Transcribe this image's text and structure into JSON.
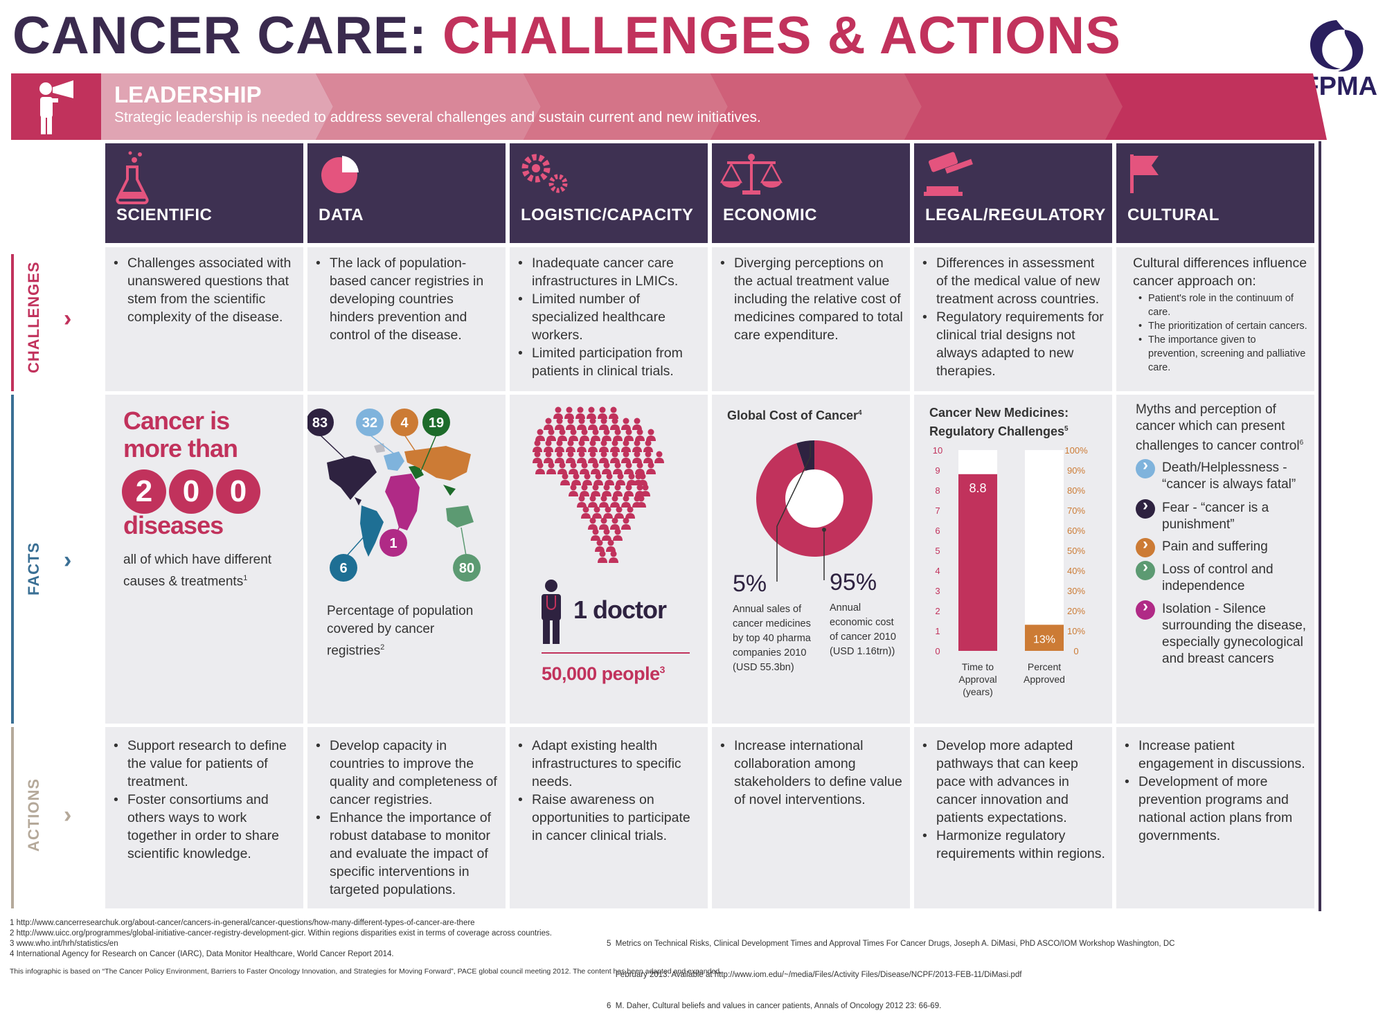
{
  "title": {
    "part1": "CANCER CARE:",
    "part2": "CHALLENGES & ACTIONS"
  },
  "logo": {
    "text": "IFPMA",
    "icon": "ifpma-swirl-logo"
  },
  "leadership": {
    "title": "LEADERSHIP",
    "subtitle": "Strategic leadership is needed to address several challenges and sustain current and new initiatives.",
    "icon": "megaphone-person-icon"
  },
  "rows": {
    "challenges": "CHALLENGES",
    "facts": "FACTS",
    "actions": "ACTIONS"
  },
  "columns": [
    {
      "label": "SCIENTIFIC",
      "icon": "flask-icon"
    },
    {
      "label": "DATA",
      "icon": "pie-icon"
    },
    {
      "label": "LOGISTIC/CAPACITY",
      "icon": "gears-icon"
    },
    {
      "label": "ECONOMIC",
      "icon": "scales-icon"
    },
    {
      "label": "LEGAL/REGULATORY",
      "icon": "gavel-icon"
    },
    {
      "label": "CULTURAL",
      "icon": "flag-icon"
    }
  ],
  "challenges": {
    "scientific": [
      "Challenges associated with unanswered questions that stem from the scientific complexity of the disease."
    ],
    "data": [
      "The lack of population-based cancer registries in developing countries hinders prevention and control of the disease."
    ],
    "logistic": [
      "Inadequate cancer care infrastructures in LMICs.",
      "Limited number of specialized healthcare workers.",
      "Limited participation from patients in clinical trials."
    ],
    "economic": [
      "Diverging perceptions on the actual treatment value including the relative cost of medicines compared to total care expenditure."
    ],
    "legal": [
      "Differences in assessment of the medical value of new treatment across countries.",
      "Regulatory requirements for clinical trial designs not always adapted to new therapies."
    ],
    "cultural_intro": "Cultural differences influence cancer approach on:",
    "cultural": [
      "Patient's role in the continuum of care.",
      "The prioritization of certain cancers.",
      "The importance given to prevention, screening and palliative care."
    ]
  },
  "facts": {
    "scientific": {
      "line1": "Cancer is",
      "line2": "more than",
      "digits": [
        "2",
        "0",
        "0"
      ],
      "line3": "diseases",
      "caption": "all of which have different causes & treatments",
      "sup": "1"
    },
    "data": {
      "bubbles": [
        {
          "label": "83",
          "color": "#2e2240"
        },
        {
          "label": "32",
          "color": "#7fb3dc"
        },
        {
          "label": "4",
          "color": "#cc7b35"
        },
        {
          "label": "19",
          "color": "#1d6b2a"
        },
        {
          "label": "6",
          "color": "#1e6f94"
        },
        {
          "label": "1",
          "color": "#b02a86"
        },
        {
          "label": "80",
          "color": "#5c9a72"
        }
      ],
      "caption": "Percentage of population covered by cancer registries",
      "sup": "2"
    },
    "logistic": {
      "doctor": "1 doctor",
      "people": "50,000 people",
      "sup": "3"
    },
    "economic": {
      "title": "Global Cost of Cancer",
      "sup": "4",
      "left_pct": "5%",
      "left_text": "Annual sales of cancer medicines by top 40 pharma companies 2010 (USD 55.3bn)",
      "right_pct": "95%",
      "right_text": "Annual economic cost of cancer 2010 (USD 1.16trn))"
    },
    "legal": {
      "title1": "Cancer New Medicines:",
      "title2": "Regulatory Challenges",
      "sup": "5"
    },
    "cultural": {
      "intro": "Myths and perception of cancer which can present challenges to cancer control",
      "sup": "6",
      "myths": [
        {
          "text": "Death/Helplessness - “cancer is always fatal”",
          "color": "#7fb3dc"
        },
        {
          "text": "Fear - “cancer is a punishment”",
          "color": "#2e2240"
        },
        {
          "text": "Pain and suffering",
          "color": "#cc7b35"
        },
        {
          "text": "Loss of control and independence",
          "color": "#5c9a72"
        },
        {
          "text": "Isolation - Silence surrounding the disease, especially gynecological and breast cancers",
          "color": "#b02a86"
        }
      ]
    }
  },
  "chart_data": [
    {
      "type": "pie",
      "title": "Global Cost of Cancer",
      "labels": [
        "Annual sales of cancer medicines by top 40 pharma companies 2010 (USD 55.3bn)",
        "Annual economic cost of cancer 2010 (USD 1.16trn))"
      ],
      "values": [
        5,
        95
      ],
      "colors": [
        "#2e2240",
        "#c1325c"
      ]
    },
    {
      "type": "bar",
      "title": "Cancer New Medicines: Regulatory Challenges",
      "categories": [
        "Time to Approval (years)",
        "Percent Approved"
      ],
      "values": [
        8.8,
        13
      ],
      "value_labels": [
        "8.8",
        "13%"
      ],
      "left_axis": {
        "ticks": [
          "0",
          "1",
          "2",
          "3",
          "4",
          "5",
          "6",
          "7",
          "8",
          "9",
          "10"
        ],
        "ylim": [
          0,
          10
        ]
      },
      "right_axis": {
        "ticks": [
          "0",
          "10%",
          "20%",
          "30%",
          "40%",
          "50%",
          "60%",
          "70%",
          "80%",
          "90%",
          "100%"
        ],
        "ylim": [
          0,
          100
        ]
      },
      "colors": [
        "#c1325c",
        "#cc7b35"
      ]
    }
  ],
  "actions": {
    "scientific": [
      "Support research to define the value for patients of treatment.",
      "Foster consortiums and others ways to work together in order to share scientific knowledge."
    ],
    "data": [
      "Develop capacity in countries to improve the quality and completeness of cancer registries.",
      "Enhance the importance of robust database to monitor and evaluate the impact of specific interventions in targeted populations."
    ],
    "logistic": [
      "Adapt existing health infrastructures to specific needs.",
      "Raise awareness on opportunities to participate in cancer clinical trials."
    ],
    "economic": [
      "Increase international collaboration among stakeholders to define value of novel interventions."
    ],
    "legal": [
      "Develop more adapted pathways that can keep pace with advances in cancer innovation and patients expectations.",
      "Harmonize regulatory requirements within regions."
    ],
    "cultural": [
      "Increase patient engagement in discussions.",
      "Development of more prevention programs and national action plans from governments."
    ]
  },
  "footnotes": {
    "left": [
      "1  http://www.cancerresearchuk.org/about-cancer/cancers-in-general/cancer-questions/how-many-different-types-of-cancer-are-there",
      "2  http://www.uicc.org/programmes/global-initiative-cancer-registry-development-gicr. Within regions disparities exist in terms of coverage across countries.",
      "3  www.who.int/hrh/statistics/en",
      "4  International Agency for Research on Cancer (IARC), Data Monitor Healthcare, World Cancer Report 2014."
    ],
    "right": [
      "5  Metrics on Technical Risks, Clinical Development Times and Approval Times For Cancer Drugs, Joseph A. DiMasi, PhD ASCO/IOM Workshop Washington, DC",
      "    February 2013. Available at http://www.iom.edu/~/media/Files/Activity Files/Disease/NCPF/2013-FEB-11/DiMasi.pdf",
      "6  M. Daher, Cultural beliefs and values in cancer patients, Annals of Oncology 2012 23: 66-69."
    ],
    "bottom": "This infographic is based on “The Cancer Policy Environment, Barriers to Faster Oncology Innovation, and Strategies for Moving Forward”, PACE global council meeting 2012. The content has been adapted and expanded."
  }
}
